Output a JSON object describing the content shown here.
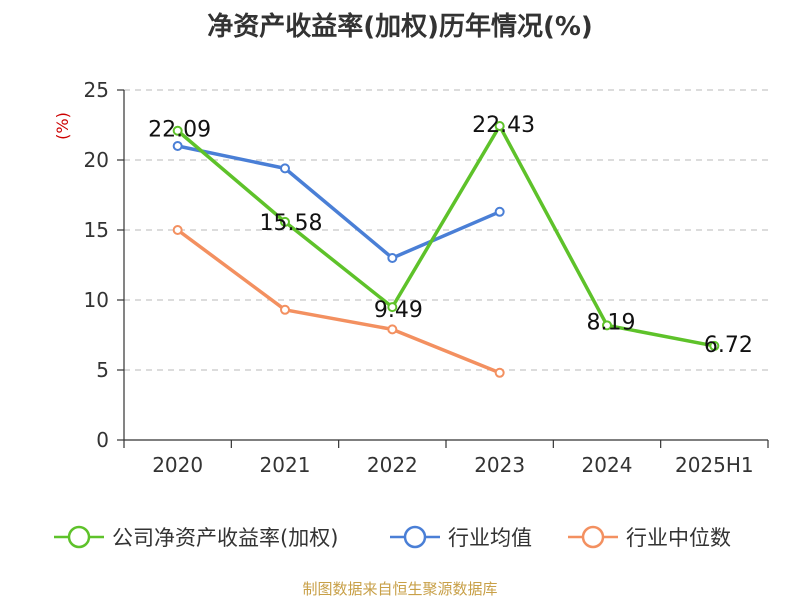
{
  "chart_data": {
    "type": "line",
    "title": "净资产收益率(加权)历年情况(%)",
    "ylabel": "(%)",
    "categories": [
      "2020",
      "2021",
      "2022",
      "2023",
      "2024",
      "2025H1"
    ],
    "ylim": [
      0,
      25
    ],
    "yticks": [
      0,
      5,
      10,
      15,
      20,
      25
    ],
    "grid": true,
    "legend_position": "bottom",
    "series": [
      {
        "name": "公司净资产收益率(加权)",
        "color": "#5ec22a",
        "values": [
          22.09,
          15.58,
          9.49,
          22.43,
          8.19,
          6.72
        ],
        "labels": [
          "22.09",
          "15.58",
          "9.49",
          "22.43",
          "8.19",
          "6.72"
        ]
      },
      {
        "name": "行业均值",
        "color": "#4a7fd6",
        "values": [
          21.0,
          19.4,
          13.0,
          16.3,
          null,
          null
        ]
      },
      {
        "name": "行业中位数",
        "color": "#f39060",
        "values": [
          15.0,
          9.3,
          7.9,
          4.8,
          null,
          null
        ]
      }
    ]
  },
  "footer": "制图数据来自恒生聚源数据库"
}
